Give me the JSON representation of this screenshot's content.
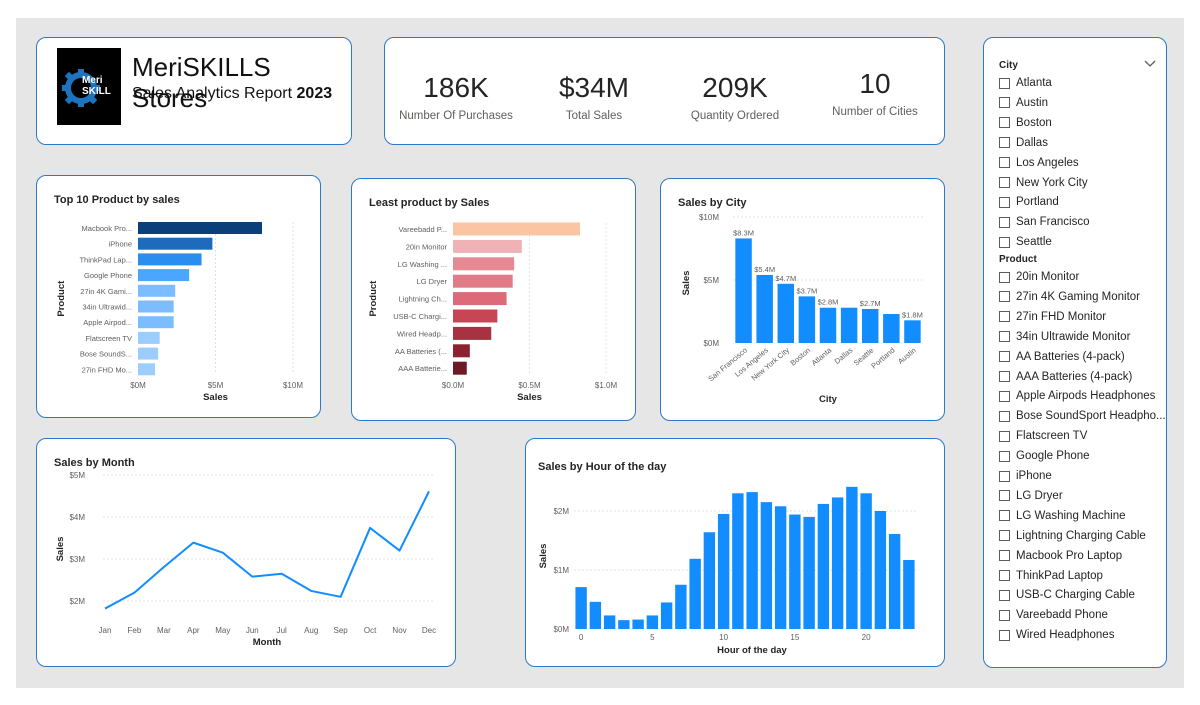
{
  "header": {
    "logo_line1": "Meri",
    "logo_line2": "SKILL",
    "brand": "MeriSKILLS Stores",
    "subtitle_prefix": "Sales Analytics Report",
    "subtitle_year": "2023"
  },
  "kpis": [
    {
      "value": "186K",
      "label": "Number Of Purchases"
    },
    {
      "value": "$34M",
      "label": "Total Sales"
    },
    {
      "value": "209K",
      "label": "Quantity Ordered"
    },
    {
      "value": "10",
      "label": "Number of Cities"
    }
  ],
  "slicer": {
    "city_header": "City",
    "cities": [
      "Atlanta",
      "Austin",
      "Boston",
      "Dallas",
      "Los Angeles",
      "New York City",
      "Portland",
      "San Francisco",
      "Seattle"
    ],
    "product_header": "Product",
    "products": [
      "20in Monitor",
      "27in 4K Gaming Monitor",
      "27in FHD Monitor",
      "34in Ultrawide Monitor",
      "AA Batteries (4-pack)",
      "AAA Batteries (4-pack)",
      "Apple Airpods Headphones",
      "Bose SoundSport Headpho...",
      "Flatscreen TV",
      "Google Phone",
      "iPhone",
      "LG Dryer",
      "LG Washing Machine",
      "Lightning Charging Cable",
      "Macbook Pro Laptop",
      "ThinkPad Laptop",
      "USB-C Charging Cable",
      "Vareebadd Phone",
      "Wired Headphones"
    ]
  },
  "colors": {
    "accent": "#2b79c8",
    "bar_blue": "#118dff",
    "canvas": "#e6e6e6",
    "top_gradient": [
      "#0b3f7a",
      "#1e6bbd",
      "#2a8ef0",
      "#4aa6ff",
      "#7bbdff",
      "#9ccdff"
    ],
    "least_gradient": [
      "#f9c5a3",
      "#efb2b6",
      "#e58a92",
      "#e17b87",
      "#dc6a78",
      "#c84556",
      "#a83142",
      "#8c2231",
      "#6e1a26"
    ]
  },
  "chart_data": [
    {
      "type": "bar",
      "orientation": "horizontal",
      "title": "Top 10 Product by sales",
      "xlabel": "Sales",
      "ylabel": "Product",
      "categories": [
        "Macbook Pro...",
        "iPhone",
        "ThinkPad Lap...",
        "Google Phone",
        "27in 4K Gami...",
        "34in Ultrawid...",
        "Apple Airpod...",
        "Flatscreen TV",
        "Bose SoundS...",
        "27in FHD Mo..."
      ],
      "values": [
        8.0,
        4.8,
        4.1,
        3.3,
        2.4,
        2.3,
        2.3,
        1.4,
        1.3,
        1.1
      ],
      "xlim": [
        0,
        10
      ],
      "ticks": [
        "$0M",
        "$5M",
        "$10M"
      ],
      "tick_values": [
        0,
        5,
        10
      ]
    },
    {
      "type": "bar",
      "orientation": "horizontal",
      "title": "Least product by Sales",
      "xlabel": "Sales",
      "ylabel": "Product",
      "categories": [
        "Vareebadd P...",
        "20in Monitor",
        "LG Washing ...",
        "LG Dryer",
        "Lightning Ch...",
        "USB-C Chargi...",
        "Wired Headp...",
        "AA Batteries (...",
        "AAA Batterie..."
      ],
      "values": [
        0.83,
        0.45,
        0.4,
        0.39,
        0.35,
        0.29,
        0.25,
        0.11,
        0.09
      ],
      "xlim": [
        0,
        1.0
      ],
      "ticks": [
        "$0.0M",
        "$0.5M",
        "$1.0M"
      ],
      "tick_values": [
        0,
        0.5,
        1.0
      ]
    },
    {
      "type": "bar",
      "title": "Sales by City",
      "xlabel": "City",
      "ylabel": "Sales",
      "categories": [
        "San Francisco",
        "Los Angeles",
        "New York City",
        "Boston",
        "Atlanta",
        "Dallas",
        "Seattle",
        "Portland",
        "Austin"
      ],
      "values": [
        8.3,
        5.4,
        4.7,
        3.7,
        2.8,
        2.8,
        2.7,
        2.3,
        1.8
      ],
      "data_labels": [
        "$8.3M",
        "$5.4M",
        "$4.7M",
        "$3.7M",
        "$2.8M",
        "",
        "$2.7M",
        "",
        "$1.8M"
      ],
      "ylim": [
        0,
        10
      ],
      "ticks": [
        "$0M",
        "$5M",
        "$10M"
      ],
      "tick_values": [
        0,
        5,
        10
      ]
    },
    {
      "type": "line",
      "title": "Sales by Month",
      "xlabel": "Month",
      "ylabel": "Sales",
      "categories": [
        "Jan",
        "Feb",
        "Mar",
        "Apr",
        "May",
        "Jun",
        "Jul",
        "Aug",
        "Sep",
        "Oct",
        "Nov",
        "Dec"
      ],
      "values": [
        1.82,
        2.2,
        2.81,
        3.39,
        3.15,
        2.58,
        2.65,
        2.24,
        2.1,
        3.74,
        3.2,
        4.61
      ],
      "ylim": [
        1.8,
        5
      ],
      "ticks": [
        "$2M",
        "$3M",
        "$4M",
        "$5M"
      ],
      "tick_values": [
        2,
        3,
        4,
        5
      ]
    },
    {
      "type": "bar",
      "title": "Sales by Hour of the day",
      "xlabel": "Hour of the day",
      "ylabel": "Sales",
      "x": [
        0,
        1,
        2,
        3,
        4,
        5,
        6,
        7,
        8,
        9,
        10,
        11,
        12,
        13,
        14,
        15,
        16,
        17,
        18,
        19,
        20,
        21,
        22,
        23
      ],
      "values": [
        0.71,
        0.46,
        0.23,
        0.15,
        0.16,
        0.23,
        0.45,
        0.75,
        1.19,
        1.64,
        1.95,
        2.3,
        2.32,
        2.15,
        2.08,
        1.94,
        1.9,
        2.12,
        2.23,
        2.41,
        2.3,
        2.0,
        1.61,
        1.17
      ],
      "ylim": [
        0,
        2.5
      ],
      "xticks": [
        "0",
        "5",
        "10",
        "15",
        "20"
      ],
      "xtick_values": [
        0,
        5,
        10,
        15,
        20
      ],
      "ticks": [
        "$0M",
        "$1M",
        "$2M"
      ],
      "tick_values": [
        0,
        1,
        2
      ]
    }
  ]
}
